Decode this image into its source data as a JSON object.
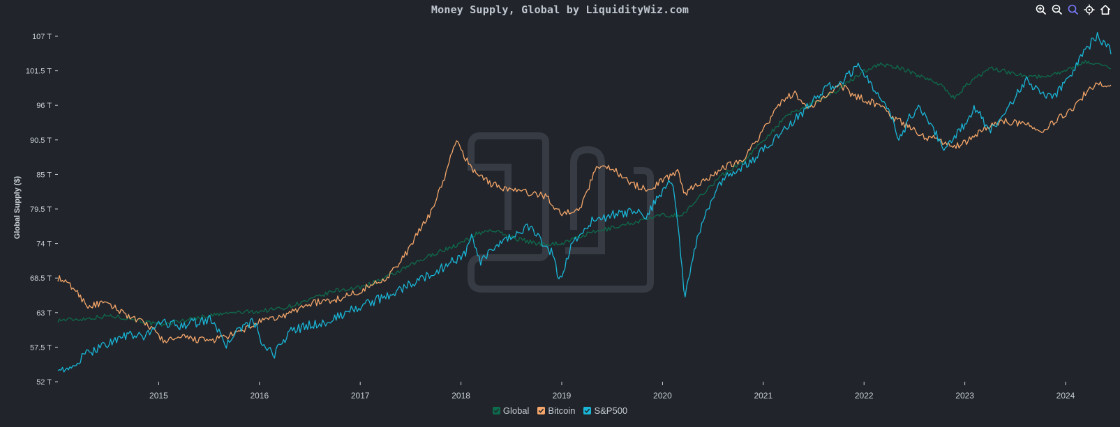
{
  "title": "Money Supply, Global by LiquidityWiz.com",
  "toolbar": {
    "icons": [
      "zoom-in-icon",
      "zoom-out-icon",
      "zoom-select-icon",
      "pan-icon",
      "home-icon"
    ],
    "active_color": "#7b7bff",
    "color": "#ffffff"
  },
  "colors": {
    "background": "#21252b",
    "Global": "#0e6a4c",
    "Bitcoin": "#f5a66a",
    "S&P500": "#19b6d8",
    "axis_text": "#c9ced6",
    "watermark": "#3a3f47"
  },
  "chart_data": {
    "type": "line",
    "title": "Money Supply, Global by LiquidityWiz.com",
    "xlabel": "",
    "ylabel": "Global Supply ($)",
    "ylim": [
      52,
      107
    ],
    "yticks": [
      52,
      57.5,
      63,
      68.5,
      74,
      79.5,
      85,
      90.5,
      96,
      101.5,
      107
    ],
    "ytick_labels": [
      "52 T",
      "57.5 T",
      "63 T",
      "68.5 T",
      "74 T",
      "79.5 T",
      "85 T",
      "90.5 T",
      "96 T",
      "101.5 T",
      "107 T"
    ],
    "xlim": [
      2014.0,
      2024.45
    ],
    "xticks": [
      2015,
      2016,
      2017,
      2018,
      2019,
      2020,
      2021,
      2022,
      2023,
      2024
    ],
    "xtick_labels": [
      "2015",
      "2016",
      "2017",
      "2018",
      "2019",
      "2020",
      "2021",
      "2022",
      "2023",
      "2024"
    ],
    "grid": false,
    "legend_position": "bottom-center",
    "series": [
      {
        "name": "Global",
        "x": [
          2014.0,
          2014.25,
          2014.5,
          2014.75,
          2015.0,
          2015.25,
          2015.5,
          2015.75,
          2016.0,
          2016.25,
          2016.5,
          2016.75,
          2017.0,
          2017.25,
          2017.5,
          2017.75,
          2018.0,
          2018.15,
          2018.3,
          2018.5,
          2018.75,
          2019.0,
          2019.25,
          2019.5,
          2019.75,
          2020.0,
          2020.2,
          2020.4,
          2020.6,
          2020.8,
          2021.0,
          2021.25,
          2021.5,
          2021.75,
          2022.0,
          2022.15,
          2022.35,
          2022.5,
          2022.75,
          2022.9,
          2023.0,
          2023.25,
          2023.5,
          2023.75,
          2024.0,
          2024.2,
          2024.45
        ],
        "y": [
          61.8,
          62.0,
          62.5,
          62.0,
          61.0,
          61.8,
          62.5,
          63.0,
          63.2,
          63.8,
          65.0,
          66.5,
          67.0,
          68.5,
          70.5,
          72.5,
          74.0,
          75.5,
          76.2,
          75.0,
          74.0,
          74.0,
          75.5,
          76.5,
          77.5,
          78.5,
          78.5,
          82.0,
          85.0,
          87.0,
          90.5,
          94.5,
          96.5,
          98.5,
          101.5,
          102.5,
          102.0,
          101.0,
          99.5,
          97.0,
          99.0,
          102.0,
          101.0,
          100.5,
          101.5,
          103.0,
          102.0
        ]
      },
      {
        "name": "Bitcoin",
        "x": [
          2014.0,
          2014.15,
          2014.3,
          2014.45,
          2014.6,
          2014.75,
          2014.9,
          2015.05,
          2015.25,
          2015.5,
          2015.75,
          2016.0,
          2016.25,
          2016.5,
          2016.75,
          2017.0,
          2017.25,
          2017.4,
          2017.55,
          2017.7,
          2017.85,
          2017.95,
          2018.1,
          2018.3,
          2018.5,
          2018.7,
          2018.85,
          2019.0,
          2019.2,
          2019.35,
          2019.5,
          2019.7,
          2019.85,
          2020.0,
          2020.15,
          2020.22,
          2020.4,
          2020.6,
          2020.8,
          2021.0,
          2021.15,
          2021.3,
          2021.45,
          2021.6,
          2021.75,
          2021.9,
          2022.0,
          2022.15,
          2022.3,
          2022.45,
          2022.6,
          2022.75,
          2022.9,
          2023.0,
          2023.2,
          2023.4,
          2023.6,
          2023.75,
          2023.9,
          2024.1,
          2024.25,
          2024.45
        ],
        "y": [
          68.5,
          67.0,
          64.0,
          64.5,
          63.5,
          62.0,
          61.0,
          58.5,
          59.0,
          58.5,
          59.5,
          61.5,
          62.5,
          64.5,
          65.0,
          66.5,
          68.5,
          71.0,
          75.0,
          79.0,
          85.0,
          90.5,
          86.0,
          83.5,
          82.5,
          82.0,
          81.5,
          78.5,
          80.0,
          86.5,
          86.0,
          83.5,
          82.5,
          84.0,
          85.5,
          82.0,
          84.0,
          86.0,
          87.5,
          92.0,
          96.0,
          98.0,
          95.5,
          97.0,
          99.5,
          97.5,
          97.0,
          96.0,
          94.0,
          92.5,
          91.0,
          90.5,
          89.5,
          90.0,
          92.5,
          93.5,
          93.0,
          92.0,
          93.5,
          96.0,
          99.0,
          99.5
        ]
      },
      {
        "name": "S&P500",
        "x": [
          2014.0,
          2014.1,
          2014.25,
          2014.4,
          2014.55,
          2014.7,
          2014.85,
          2015.0,
          2015.2,
          2015.4,
          2015.55,
          2015.65,
          2015.8,
          2015.95,
          2016.05,
          2016.15,
          2016.3,
          2016.5,
          2016.7,
          2016.85,
          2017.0,
          2017.25,
          2017.5,
          2017.75,
          2017.95,
          2018.05,
          2018.1,
          2018.2,
          2018.35,
          2018.55,
          2018.7,
          2018.8,
          2018.9,
          2018.98,
          2019.1,
          2019.3,
          2019.5,
          2019.7,
          2019.85,
          2020.0,
          2020.1,
          2020.15,
          2020.22,
          2020.3,
          2020.4,
          2020.55,
          2020.7,
          2020.85,
          2021.0,
          2021.2,
          2021.4,
          2021.6,
          2021.8,
          2021.95,
          2022.05,
          2022.2,
          2022.35,
          2022.45,
          2022.55,
          2022.7,
          2022.8,
          2022.95,
          2023.1,
          2023.25,
          2023.45,
          2023.6,
          2023.75,
          2023.9,
          2024.05,
          2024.2,
          2024.32,
          2024.45
        ],
        "y": [
          54.5,
          53.5,
          56.0,
          57.5,
          58.5,
          59.5,
          59.0,
          61.5,
          61.0,
          61.5,
          62.0,
          57.5,
          60.5,
          61.5,
          57.0,
          56.5,
          60.0,
          61.0,
          61.5,
          63.0,
          64.0,
          65.5,
          67.5,
          69.5,
          71.5,
          72.5,
          75.0,
          71.0,
          73.5,
          75.5,
          77.0,
          74.0,
          72.5,
          68.0,
          74.0,
          77.5,
          78.5,
          79.0,
          78.5,
          82.5,
          84.0,
          78.0,
          65.0,
          72.0,
          77.5,
          83.0,
          85.5,
          86.5,
          89.0,
          92.0,
          95.0,
          98.5,
          100.0,
          102.5,
          99.5,
          97.0,
          90.5,
          94.0,
          96.0,
          92.0,
          88.5,
          92.0,
          95.5,
          92.0,
          96.0,
          100.0,
          98.0,
          97.5,
          101.0,
          105.0,
          107.0,
          104.5
        ]
      }
    ]
  }
}
